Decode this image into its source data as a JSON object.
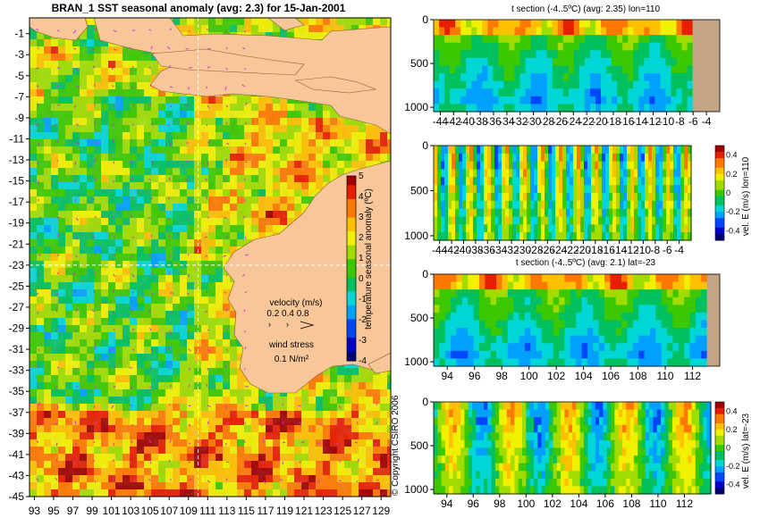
{
  "colors": {
    "land": "#f7c79a",
    "bathy": "#c4a583",
    "marker": "#d030d0",
    "crosshair": "#ffffff",
    "colormap": [
      "#000070",
      "#0000c8",
      "#0046ff",
      "#00a0ff",
      "#00d6d6",
      "#00c060",
      "#3cc800",
      "#a0dc00",
      "#f0f000",
      "#ffc000",
      "#ff7800",
      "#e81e00",
      "#a00000"
    ]
  },
  "chart_data": [
    {
      "type": "heatmap",
      "title": "BRAN_1  SST seasonal anomaly  (avg: 2.3)  for 15-Jan-2001",
      "xlabel": "",
      "ylabel": "",
      "x_ticks": [
        "93",
        "95",
        "97",
        "99",
        "101",
        "103",
        "105",
        "107",
        "109",
        "111",
        "113",
        "115",
        "117",
        "119",
        "121",
        "123",
        "125",
        "127",
        "129"
      ],
      "y_ticks": [
        "-1",
        "-3",
        "-5",
        "-7",
        "-9",
        "-11",
        "-13",
        "-15",
        "-17",
        "-19",
        "-21",
        "-23",
        "-25",
        "-27",
        "-29",
        "-31",
        "-33",
        "-35",
        "-37",
        "-39",
        "-41",
        "-43",
        "-45"
      ],
      "xlim": [
        92.5,
        130
      ],
      "ylim": [
        -45,
        0.5
      ],
      "crosshair": {
        "lon": 110,
        "lat": -23
      },
      "colorbar": {
        "label": "temperature seasonal anomaly (ºC)",
        "ticks": [
          "5",
          "4",
          "3",
          "2",
          "1",
          "0",
          "-1",
          "-2",
          "-3",
          "-4"
        ],
        "range": [
          -4,
          5
        ]
      },
      "velocity_legend": {
        "title": "velocity (m/s)",
        "values": "0.2 0.4 0.8"
      },
      "wind_legend": {
        "title": "wind stress",
        "value": "0.1 N/m²"
      },
      "copyright": "© Copyright CSIRO 2006"
    },
    {
      "type": "heatmap",
      "title": "t section (-4..5ºC) (avg: 2.35) lon=110",
      "x_ticks": [
        "-44",
        "-42",
        "-40",
        "-38",
        "-36",
        "-34",
        "-32",
        "-30",
        "-28",
        "-26",
        "-24",
        "-22",
        "-20",
        "-18",
        "-16",
        "-14",
        "-12",
        "-10",
        "-8",
        "-6",
        "-4"
      ],
      "y_ticks": [
        "0",
        "500",
        "1000"
      ],
      "xlim": [
        -45,
        -2
      ],
      "ylim": [
        1050,
        0
      ]
    },
    {
      "type": "heatmap",
      "title": "",
      "x_ticks": [
        "-44",
        "-42",
        "-40",
        "-38",
        "-36",
        "-34",
        "-32",
        "-30",
        "-28",
        "-26",
        "-24",
        "-22",
        "-20",
        "-18",
        "-16",
        "-14",
        "-12",
        "-10",
        "-8",
        "-6",
        "-4"
      ],
      "y_ticks": [
        "0",
        "500",
        "1000"
      ],
      "xlim": [
        -45,
        -2
      ],
      "ylim": [
        1050,
        0
      ],
      "colorbar": {
        "label": "vel. E (m/s) lon=110",
        "ticks": [
          "0.4",
          "0.2",
          "0",
          "-0.2",
          "-0.4"
        ],
        "range": [
          -0.5,
          0.5
        ]
      }
    },
    {
      "type": "heatmap",
      "title": "t section (-4..5ºC) (avg: 2.1) lat=-23",
      "x_ticks": [
        "94",
        "96",
        "98",
        "100",
        "102",
        "104",
        "106",
        "108",
        "110",
        "112"
      ],
      "y_ticks": [
        "0",
        "500",
        "1000"
      ],
      "xlim": [
        93,
        114
      ],
      "ylim": [
        1050,
        0
      ]
    },
    {
      "type": "heatmap",
      "title": "",
      "x_ticks": [
        "94",
        "96",
        "98",
        "100",
        "102",
        "104",
        "106",
        "108",
        "110",
        "112"
      ],
      "y_ticks": [
        "0",
        "500",
        "1000"
      ],
      "xlim": [
        93,
        114
      ],
      "ylim": [
        1050,
        0
      ],
      "colorbar": {
        "label": "vel. E (m/s) lat=-23",
        "ticks": [
          "0.4",
          "0.2",
          "0",
          "-0.2",
          "-0.4"
        ],
        "range": [
          -0.5,
          0.5
        ]
      }
    }
  ]
}
